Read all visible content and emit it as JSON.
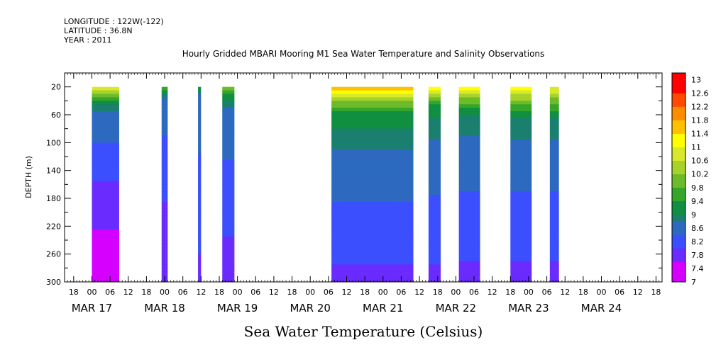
{
  "header": {
    "longitude": "LONGITUDE : 122W(-122)",
    "latitude": "LATITUDE : 36.8N",
    "year": "YEAR : 2011"
  },
  "chart_data": {
    "type": "heatmap",
    "title": "Hourly Gridded MBARI Mooring M1 Sea Water Temperature and Salinity Observations",
    "subtitle": "Sea Water Temperature (Celsius)",
    "ylabel": "DEPTH (m)",
    "ylim": [
      300,
      0
    ],
    "y_ticks": [
      20,
      60,
      100,
      140,
      180,
      220,
      260,
      300
    ],
    "x_start": "2011-03-16 15:00",
    "x_end": "2011-03-24 20:00",
    "x_hour_ticks": [
      {
        "t": "2011-03-16 18:00",
        "label": "18"
      },
      {
        "t": "2011-03-17 00:00",
        "label": "00"
      },
      {
        "t": "2011-03-17 06:00",
        "label": "06"
      },
      {
        "t": "2011-03-17 12:00",
        "label": "12"
      },
      {
        "t": "2011-03-17 18:00",
        "label": "18"
      },
      {
        "t": "2011-03-18 00:00",
        "label": "00"
      },
      {
        "t": "2011-03-18 06:00",
        "label": "06"
      },
      {
        "t": "2011-03-18 12:00",
        "label": "12"
      },
      {
        "t": "2011-03-18 18:00",
        "label": "18"
      },
      {
        "t": "2011-03-19 00:00",
        "label": "00"
      },
      {
        "t": "2011-03-19 06:00",
        "label": "06"
      },
      {
        "t": "2011-03-19 12:00",
        "label": "12"
      },
      {
        "t": "2011-03-19 18:00",
        "label": "18"
      },
      {
        "t": "2011-03-20 00:00",
        "label": "00"
      },
      {
        "t": "2011-03-20 06:00",
        "label": "06"
      },
      {
        "t": "2011-03-20 12:00",
        "label": "12"
      },
      {
        "t": "2011-03-20 18:00",
        "label": "18"
      },
      {
        "t": "2011-03-21 00:00",
        "label": "00"
      },
      {
        "t": "2011-03-21 06:00",
        "label": "06"
      },
      {
        "t": "2011-03-21 12:00",
        "label": "12"
      },
      {
        "t": "2011-03-21 18:00",
        "label": "18"
      },
      {
        "t": "2011-03-22 00:00",
        "label": "00"
      },
      {
        "t": "2011-03-22 06:00",
        "label": "06"
      },
      {
        "t": "2011-03-22 12:00",
        "label": "12"
      },
      {
        "t": "2011-03-22 18:00",
        "label": "18"
      },
      {
        "t": "2011-03-23 00:00",
        "label": "00"
      },
      {
        "t": "2011-03-23 06:00",
        "label": "06"
      },
      {
        "t": "2011-03-23 12:00",
        "label": "12"
      },
      {
        "t": "2011-03-23 18:00",
        "label": "18"
      },
      {
        "t": "2011-03-24 00:00",
        "label": "00"
      },
      {
        "t": "2011-03-24 06:00",
        "label": "06"
      },
      {
        "t": "2011-03-24 12:00",
        "label": "12"
      },
      {
        "t": "2011-03-24 18:00",
        "label": "18"
      }
    ],
    "x_day_labels": [
      {
        "t": "2011-03-17 00:00",
        "label": "MAR 17"
      },
      {
        "t": "2011-03-18 00:00",
        "label": "MAR 18"
      },
      {
        "t": "2011-03-19 00:00",
        "label": "MAR 19"
      },
      {
        "t": "2011-03-20 00:00",
        "label": "MAR 20"
      },
      {
        "t": "2011-03-21 00:00",
        "label": "MAR 21"
      },
      {
        "t": "2011-03-22 00:00",
        "label": "MAR 22"
      },
      {
        "t": "2011-03-23 00:00",
        "label": "MAR 23"
      },
      {
        "t": "2011-03-24 00:00",
        "label": "MAR 24"
      }
    ],
    "colorbar": {
      "min": 7,
      "max": 13.2,
      "step": 0.2,
      "labels": [
        "13",
        "12.6",
        "12.2",
        "11.8",
        "11.4",
        "11",
        "10.6",
        "10.2",
        "9.8",
        "9.4",
        "9",
        "8.6",
        "8.2",
        "7.8",
        "7.4",
        "7"
      ],
      "label_values": [
        13,
        12.6,
        12.2,
        11.8,
        11.4,
        11,
        10.6,
        10.2,
        9.8,
        9.4,
        9,
        8.6,
        8.2,
        7.8,
        7.4,
        7
      ],
      "color_stops": [
        {
          "v": 7.0,
          "c": "#d500ff"
        },
        {
          "v": 7.6,
          "c": "#6a2bff"
        },
        {
          "v": 8.0,
          "c": "#3b4fff"
        },
        {
          "v": 8.4,
          "c": "#2d6abf"
        },
        {
          "v": 8.8,
          "c": "#1a7f6e"
        },
        {
          "v": 9.0,
          "c": "#0f8f3f"
        },
        {
          "v": 9.4,
          "c": "#35a62a"
        },
        {
          "v": 9.8,
          "c": "#6dbb2a"
        },
        {
          "v": 10.2,
          "c": "#a6d22a"
        },
        {
          "v": 10.6,
          "c": "#d8e82a"
        },
        {
          "v": 11.0,
          "c": "#ffff00"
        },
        {
          "v": 11.4,
          "c": "#ffc000"
        },
        {
          "v": 11.8,
          "c": "#ff8c00"
        },
        {
          "v": 12.2,
          "c": "#ff4a00"
        },
        {
          "v": 12.6,
          "c": "#ff0000"
        },
        {
          "v": 13.2,
          "c": "#9b0000"
        }
      ]
    },
    "data_segments": [
      {
        "start": "2011-03-17 00:00",
        "end": "2011-03-17 09:00",
        "surface": 11.0,
        "bottom": 7.2,
        "thermo": 45,
        "mid_temp": 8.4
      },
      {
        "start": "2011-03-17 23:00",
        "end": "2011-03-18 01:00",
        "surface": 10.0,
        "bottom": 7.6,
        "thermo": 35,
        "mid_temp": 8.2
      },
      {
        "start": "2011-03-18 11:00",
        "end": "2011-03-18 12:00",
        "surface": 9.6,
        "bottom": 7.9,
        "thermo": 30,
        "mid_temp": 8.2
      },
      {
        "start": "2011-03-18 19:00",
        "end": "2011-03-18 23:00",
        "surface": 10.2,
        "bottom": 7.8,
        "thermo": 40,
        "mid_temp": 8.3
      },
      {
        "start": "2011-03-20 07:00",
        "end": "2011-03-21 10:00",
        "surface": 11.8,
        "bottom": 7.9,
        "thermo": 55,
        "mid_temp": 8.7
      },
      {
        "start": "2011-03-21 15:00",
        "end": "2011-03-21 19:00",
        "surface": 11.4,
        "bottom": 7.9,
        "thermo": 50,
        "mid_temp": 8.6
      },
      {
        "start": "2011-03-22 01:00",
        "end": "2011-03-22 08:00",
        "surface": 11.2,
        "bottom": 7.9,
        "thermo": 55,
        "mid_temp": 8.5
      },
      {
        "start": "2011-03-22 18:00",
        "end": "2011-03-23 01:00",
        "surface": 11.2,
        "bottom": 7.9,
        "thermo": 60,
        "mid_temp": 8.5
      },
      {
        "start": "2011-03-23 07:00",
        "end": "2011-03-23 10:00",
        "surface": 11.0,
        "bottom": 7.9,
        "thermo": 60,
        "mid_temp": 8.5
      }
    ]
  }
}
